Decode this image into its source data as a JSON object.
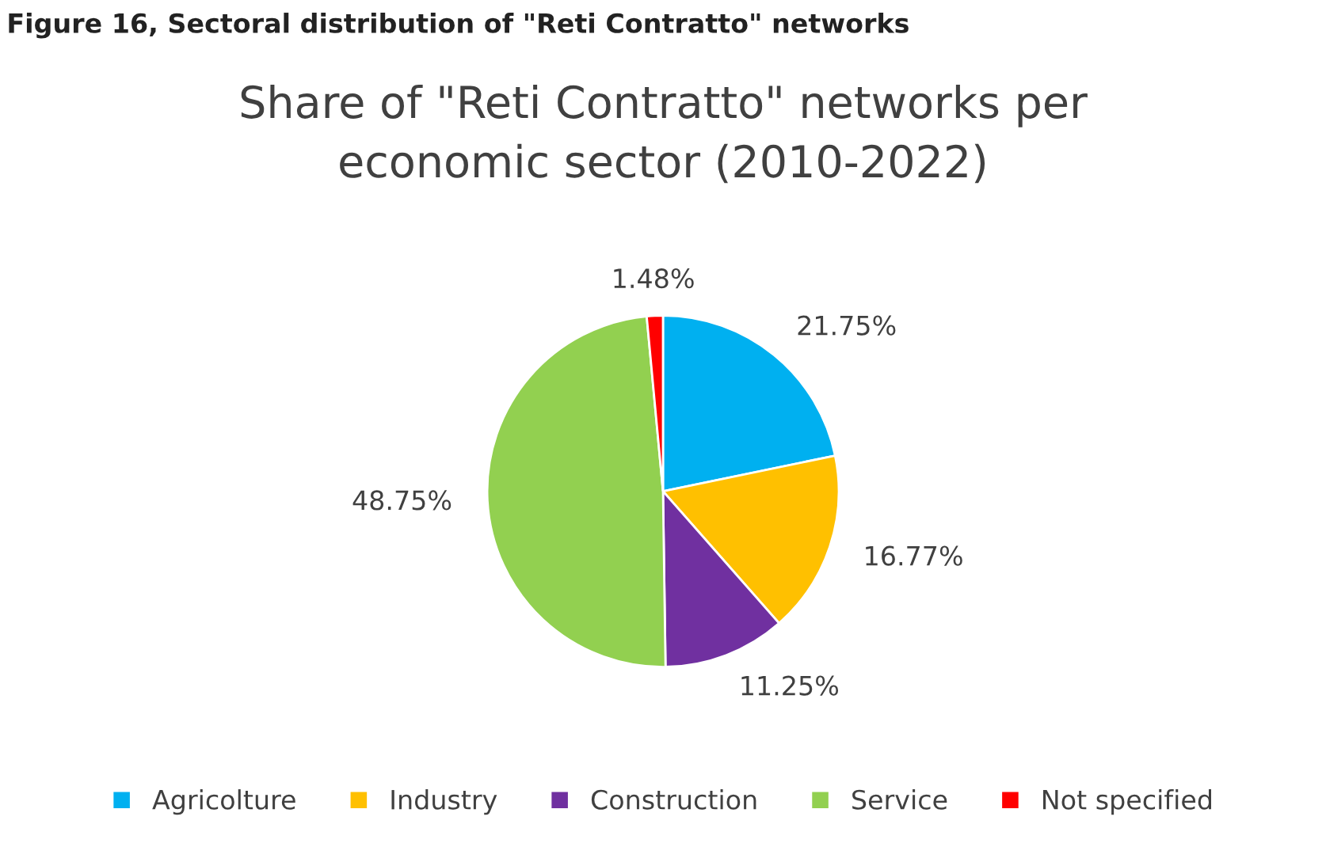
{
  "chart_data": {
    "type": "pie",
    "title": "Share of \"Reti Contratto\" networks per\neconomic sector (2010-2022)",
    "annotations": [
      "Figure 16, Sectoral distribution of \"Reti Contratto\" networks"
    ],
    "categories": [
      "Agricolture",
      "Industry",
      "Construction",
      "Service",
      "Not specified"
    ],
    "values": [
      21.75,
      16.77,
      11.25,
      48.75,
      1.48
    ],
    "colors": [
      "#00b0f0",
      "#ffc000",
      "#7030a0",
      "#92d050",
      "#ff0000"
    ],
    "value_labels": [
      "21.75%",
      "16.77%",
      "11.25%",
      "48.75%",
      "1.48%"
    ],
    "legend": "bottom"
  }
}
